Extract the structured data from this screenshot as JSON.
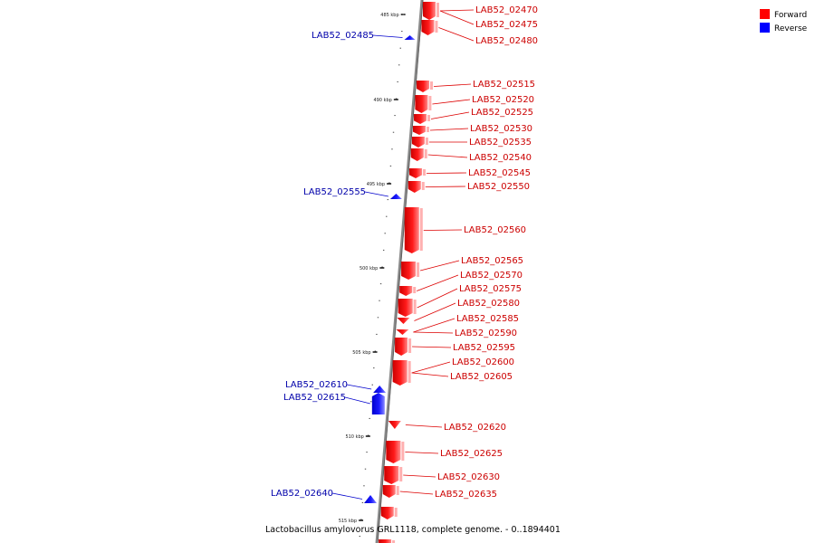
{
  "caption": "Lactobacillus amylovorus GRL1118, complete genome. - 0..1894401",
  "legend": [
    {
      "label": "Forward",
      "color": "#ff0000"
    },
    {
      "label": "Reverse",
      "color": "#0000ff"
    }
  ],
  "colors": {
    "forward": "#ee0000",
    "forward_light": "#ff7070",
    "reverse": "#1010ee",
    "reverse_light": "#5a5aff",
    "backbone": "#888888",
    "forward_text": "#cc0000",
    "reverse_text": "#0000aa"
  },
  "ticks": [
    "485 kbp",
    "490 kbp",
    "495 kbp",
    "500 kbp",
    "505 kbp",
    "510 kbp",
    "515 kbp"
  ],
  "forward_genes": [
    "LAB52_02470",
    "LAB52_02475",
    "LAB52_02480",
    "LAB52_02515",
    "LAB52_02520",
    "LAB52_02525",
    "LAB52_02530",
    "LAB52_02535",
    "LAB52_02540",
    "LAB52_02545",
    "LAB52_02550",
    "LAB52_02560",
    "LAB52_02565",
    "LAB52_02570",
    "LAB52_02575",
    "LAB52_02580",
    "LAB52_02585",
    "LAB52_02590",
    "LAB52_02595",
    "LAB52_02600",
    "LAB52_02605",
    "LAB52_02620",
    "LAB52_02625",
    "LAB52_02630",
    "LAB52_02635"
  ],
  "reverse_genes": [
    "LAB52_02485",
    "LAB52_02555",
    "LAB52_02610",
    "LAB52_02615",
    "LAB52_02640"
  ]
}
